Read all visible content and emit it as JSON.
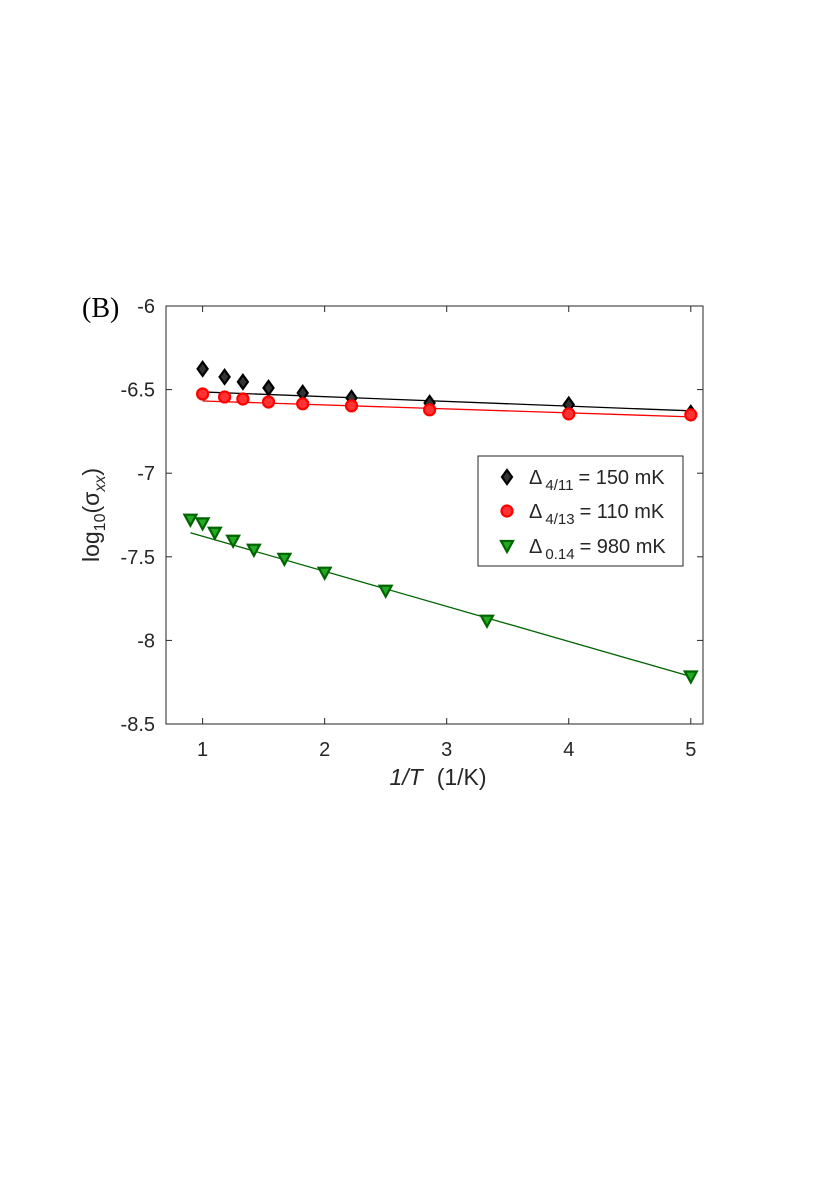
{
  "chart_data": {
    "type": "scatter",
    "panel_label": "(B)",
    "y_label": {
      "base": "log",
      "sub1": "10",
      "open": "(σ",
      "sub2": "xx",
      "close": ")"
    },
    "x_label": {
      "italic": "1/T",
      "rest": "(1/K)"
    },
    "xlim": [
      0.7,
      5.1
    ],
    "xticks": [
      1,
      2,
      3,
      4,
      5
    ],
    "ylim": [
      -8.5,
      -6
    ],
    "yticks": [
      -8.5,
      -8,
      -7.5,
      -7,
      -6.5,
      -6
    ],
    "series": [
      {
        "symbol": "Δ",
        "subscript": "4/11",
        "suffix": "= 150 mK",
        "marker": "diamond",
        "color": "#000000",
        "fill": "#333333",
        "x": [
          1,
          1.18,
          1.33,
          1.54,
          1.82,
          2.22,
          2.86,
          4,
          5
        ],
        "values": [
          -6.376,
          -6.424,
          -6.454,
          -6.49,
          -6.52,
          -6.55,
          -6.58,
          -6.59,
          -6.64
        ],
        "fit_x": [
          1,
          5
        ],
        "fit_values": [
          -6.514,
          -6.627
        ]
      },
      {
        "symbol": "Δ",
        "subscript": "4/13",
        "suffix": "= 110 mK",
        "marker": "circle",
        "color": "#ff0000",
        "fill": "#ff3333",
        "x": [
          1,
          1.18,
          1.33,
          1.54,
          1.82,
          2.22,
          2.86,
          4,
          5
        ],
        "values": [
          -6.526,
          -6.544,
          -6.556,
          -6.574,
          -6.585,
          -6.597,
          -6.621,
          -6.645,
          -6.651
        ],
        "fit_x": [
          1,
          5
        ],
        "fit_values": [
          -6.568,
          -6.663
        ]
      },
      {
        "symbol": "Δ",
        "subscript": "0.14",
        "suffix": "= 980 mK",
        "marker": "triangle-down",
        "color": "#006400",
        "fill": "#22aa22",
        "x": [
          0.9,
          1,
          1.1,
          1.25,
          1.42,
          1.67,
          2,
          2.5,
          3.33,
          5
        ],
        "values": [
          -7.278,
          -7.3,
          -7.356,
          -7.404,
          -7.458,
          -7.512,
          -7.595,
          -7.703,
          -7.882,
          -8.216
        ],
        "fit_x": [
          0.9,
          5
        ],
        "fit_values": [
          -7.356,
          -8.216
        ]
      }
    ]
  }
}
